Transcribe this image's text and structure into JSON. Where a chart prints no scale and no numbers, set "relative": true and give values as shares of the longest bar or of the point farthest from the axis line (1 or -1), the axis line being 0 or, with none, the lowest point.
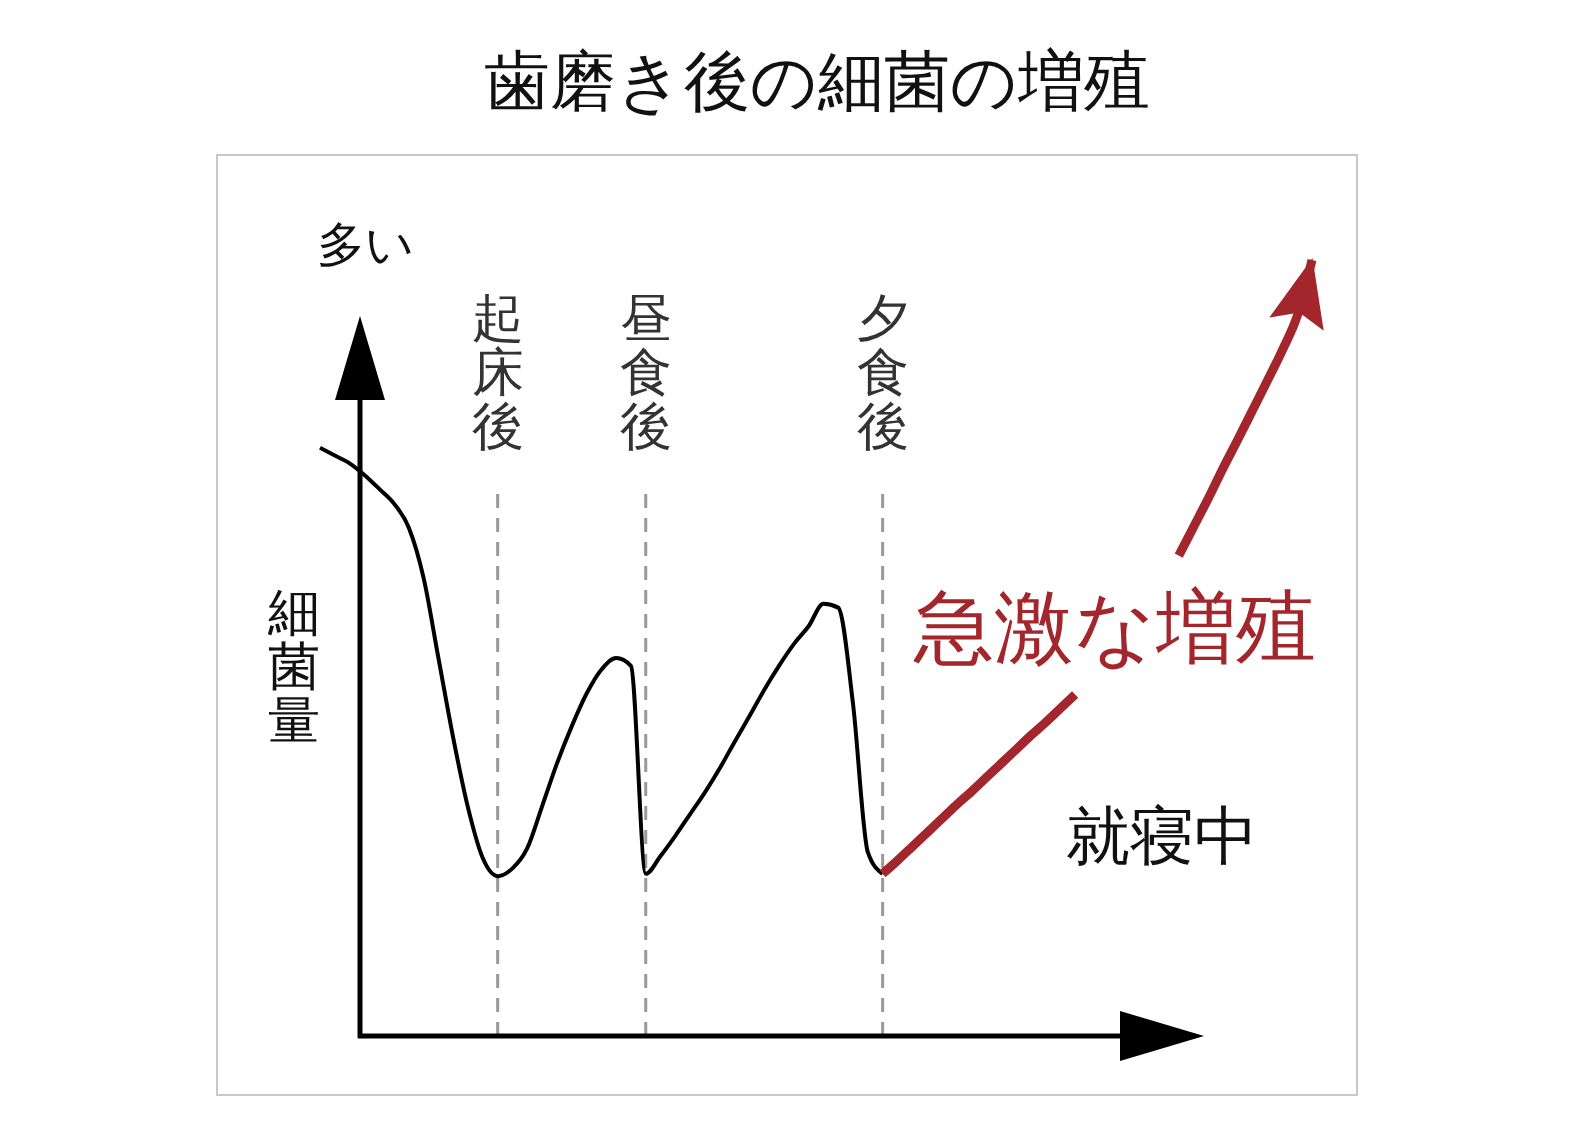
{
  "chart_data": {
    "type": "line",
    "title": "歯磨き後の細菌の増殖",
    "ylabel": "細菌量",
    "relative": true,
    "tick_labels": "x",
    "categories": [
      null,
      null,
      null,
      null,
      null,
      null,
      null,
      null,
      null,
      null,
      null,
      null,
      "起床後",
      null,
      null,
      null,
      null,
      null,
      null,
      null,
      null,
      null,
      "昼食後",
      null,
      null,
      null,
      null,
      null,
      null,
      null,
      null,
      null,
      null,
      null,
      null,
      null,
      null,
      null,
      "夕食後",
      null,
      null,
      null,
      null,
      null,
      null,
      null,
      null,
      null,
      null,
      null,
      null,
      null,
      null,
      null,
      null,
      null,
      null,
      null,
      null,
      null,
      null,
      null,
      null,
      null,
      null,
      null,
      null,
      null
    ],
    "series": [
      {
        "color": "#000000",
        "values": [
          0.758,
          0.748,
          0.738,
          0.723,
          0.705,
          0.686,
          0.655,
          0.59,
          0.487,
          0.384,
          0.294,
          0.229,
          0.206,
          0.216,
          0.242,
          0.296,
          0.351,
          0.399,
          0.441,
          0.472,
          0.487,
          0.477,
          0.209,
          0.232,
          0.258,
          0.286,
          0.314,
          0.345,
          0.379,
          0.412,
          0.446,
          0.477,
          0.505,
          0.528,
          0.557,
          0.552,
          0.428,
          0.237,
          0.209,
          null,
          null,
          null,
          null,
          null,
          null,
          null,
          null,
          null,
          null,
          null,
          null,
          null,
          null,
          null,
          null,
          null,
          null,
          null,
          null,
          null,
          null,
          null,
          null,
          null,
          null,
          null,
          null,
          null
        ]
      },
      {
        "name": "急激な増殖",
        "color": "#a3262c",
        "values": [
          null,
          null,
          null,
          null,
          null,
          null,
          null,
          null,
          null,
          null,
          null,
          null,
          null,
          null,
          null,
          null,
          null,
          null,
          null,
          null,
          null,
          null,
          null,
          null,
          null,
          null,
          null,
          null,
          null,
          null,
          null,
          null,
          null,
          null,
          null,
          null,
          null,
          null,
          0.209,
          0.226,
          0.244,
          0.262,
          0.28,
          0.298,
          0.315,
          0.333,
          0.351,
          0.369,
          0.387,
          0.404,
          0.422,
          0.44,
          null,
          null,
          null,
          null,
          null,
          null,
          0.619,
          0.656,
          0.693,
          0.732,
          0.769,
          0.807,
          0.845,
          0.884,
          0.928,
          1.0
        ]
      }
    ],
    "ref_lines": [
      {
        "axis": "x",
        "value": "起床後",
        "color": "#999999",
        "line_style": "dashed"
      },
      {
        "axis": "x",
        "value": "昼食後",
        "color": "#999999",
        "line_style": "dashed"
      },
      {
        "axis": "x",
        "value": "夕食後",
        "color": "#999999",
        "line_style": "dashed"
      }
    ],
    "annotations": [
      "多い",
      "就寝中"
    ]
  }
}
